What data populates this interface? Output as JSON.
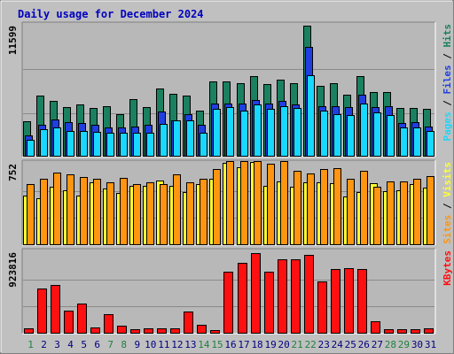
{
  "title": "Daily usage for December 2024",
  "colors": {
    "background": "#c0c0c0",
    "plot_bg": "#b8b8b8",
    "title": "#0000c0",
    "hits": "#1a8060",
    "files": "#1f3fe0",
    "pages": "#18d8ff",
    "visits": "#ffff30",
    "sites": "#ff9510",
    "kbytes": "#ff1010",
    "day_default": "#000080",
    "day_weekend": "#208040"
  },
  "chart_data": [
    {
      "type": "bar",
      "panel": "top",
      "y_max_label": "11599",
      "ylim": [
        0,
        11599
      ],
      "legend": [
        {
          "text": "Pages",
          "color": "#18d8ff"
        },
        {
          "text": " / ",
          "color": "#000000"
        },
        {
          "text": "Files",
          "color": "#1f3fe0"
        },
        {
          "text": " / ",
          "color": "#000000"
        },
        {
          "text": "Hits",
          "color": "#1a8060"
        }
      ],
      "series": [
        {
          "name": "Hits",
          "values": [
            3150,
            5400,
            4900,
            4400,
            4600,
            4300,
            4500,
            3800,
            5100,
            4400,
            6000,
            5600,
            5400,
            4100,
            6700,
            6700,
            6500,
            7100,
            6400,
            6800,
            6500,
            11600,
            6300,
            6500,
            5500,
            7150,
            5700,
            5700,
            4300,
            4300,
            4200
          ]
        },
        {
          "name": "Files",
          "values": [
            1900,
            2800,
            3300,
            3050,
            3000,
            2800,
            2600,
            2600,
            2700,
            2800,
            4000,
            3200,
            3800,
            2850,
            4700,
            4700,
            4700,
            5000,
            4700,
            4900,
            4600,
            9700,
            4500,
            4500,
            4400,
            5500,
            4400,
            4500,
            3000,
            3050,
            2700
          ]
        },
        {
          "name": "Pages",
          "values": [
            1500,
            2400,
            2600,
            2300,
            2300,
            2200,
            2100,
            2100,
            2100,
            2100,
            2900,
            3200,
            3200,
            2100,
            4200,
            4400,
            4100,
            4600,
            4200,
            4500,
            4300,
            7200,
            4100,
            3800,
            3700,
            4700,
            3900,
            3700,
            2600,
            2600,
            2300
          ]
        }
      ]
    },
    {
      "type": "bar",
      "panel": "middle",
      "y_max_label": "752",
      "ylim": [
        0,
        752
      ],
      "legend": [
        {
          "text": "Sites",
          "color": "#ff9510"
        },
        {
          "text": " / ",
          "color": "#000000"
        },
        {
          "text": "Visits",
          "color": "#ffff30"
        }
      ],
      "series": [
        {
          "name": "Visits",
          "values": [
            460,
            430,
            540,
            510,
            460,
            580,
            520,
            480,
            550,
            550,
            600,
            550,
            490,
            560,
            610,
            760,
            720,
            770,
            550,
            590,
            540,
            580,
            580,
            570,
            450,
            490,
            570,
            500,
            510,
            560,
            530
          ]
        },
        {
          "name": "Sites",
          "values": [
            565,
            610,
            670,
            650,
            630,
            610,
            580,
            620,
            560,
            580,
            560,
            650,
            580,
            610,
            700,
            780,
            780,
            780,
            750,
            780,
            690,
            660,
            700,
            710,
            610,
            690,
            540,
            590,
            590,
            610,
            640
          ]
        }
      ]
    },
    {
      "type": "bar",
      "panel": "bottom",
      "y_max_label": "923816",
      "ylim": [
        0,
        923816
      ],
      "legend": [
        {
          "text": "KBytes",
          "color": "#ff1010"
        }
      ],
      "series": [
        {
          "name": "KBytes",
          "values": [
            60000,
            510000,
            555000,
            260000,
            345000,
            72000,
            225000,
            90000,
            55000,
            60000,
            65000,
            65000,
            250000,
            100000,
            40000,
            700000,
            800000,
            910000,
            700000,
            840000,
            840000,
            890000,
            590000,
            730000,
            740000,
            730000,
            140000,
            52000,
            55000,
            55000,
            65000
          ]
        }
      ]
    }
  ],
  "days": [
    {
      "label": "1",
      "weekend": true
    },
    {
      "label": "2",
      "weekend": false
    },
    {
      "label": "3",
      "weekend": false
    },
    {
      "label": "4",
      "weekend": false
    },
    {
      "label": "5",
      "weekend": false
    },
    {
      "label": "6",
      "weekend": false
    },
    {
      "label": "7",
      "weekend": true
    },
    {
      "label": "8",
      "weekend": true
    },
    {
      "label": "9",
      "weekend": false
    },
    {
      "label": "10",
      "weekend": false
    },
    {
      "label": "11",
      "weekend": false
    },
    {
      "label": "12",
      "weekend": false
    },
    {
      "label": "13",
      "weekend": false
    },
    {
      "label": "14",
      "weekend": true
    },
    {
      "label": "15",
      "weekend": true
    },
    {
      "label": "16",
      "weekend": false
    },
    {
      "label": "17",
      "weekend": false
    },
    {
      "label": "18",
      "weekend": false
    },
    {
      "label": "19",
      "weekend": false
    },
    {
      "label": "20",
      "weekend": false
    },
    {
      "label": "21",
      "weekend": true
    },
    {
      "label": "22",
      "weekend": true
    },
    {
      "label": "23",
      "weekend": false
    },
    {
      "label": "24",
      "weekend": false
    },
    {
      "label": "25",
      "weekend": false
    },
    {
      "label": "26",
      "weekend": false
    },
    {
      "label": "27",
      "weekend": false
    },
    {
      "label": "28",
      "weekend": true
    },
    {
      "label": "29",
      "weekend": true
    },
    {
      "label": "30",
      "weekend": false
    },
    {
      "label": "31",
      "weekend": false
    }
  ]
}
